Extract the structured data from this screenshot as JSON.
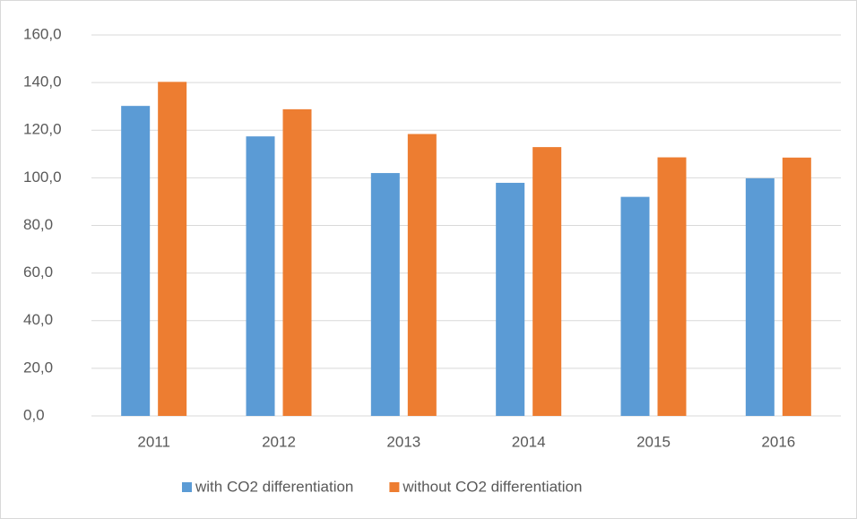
{
  "chart_data": {
    "type": "bar",
    "categories": [
      "2011",
      "2012",
      "2013",
      "2014",
      "2015",
      "2016"
    ],
    "series": [
      {
        "name": "with CO2 differentiation",
        "color": "#5b9bd5",
        "values": [
          130.2,
          117.4,
          102.0,
          97.9,
          92.0,
          99.8
        ]
      },
      {
        "name": "without CO2 differentiation",
        "color": "#ed7d31",
        "values": [
          140.3,
          128.8,
          118.4,
          112.9,
          108.6,
          108.5
        ]
      }
    ],
    "ylim": [
      0,
      160
    ],
    "yticks": [
      {
        "value": 0,
        "label": "0,0"
      },
      {
        "value": 20,
        "label": "20,0"
      },
      {
        "value": 40,
        "label": "40,0"
      },
      {
        "value": 60,
        "label": "60,0"
      },
      {
        "value": 80,
        "label": "80,0"
      },
      {
        "value": 100,
        "label": "100,0"
      },
      {
        "value": 120,
        "label": "120,0"
      },
      {
        "value": 140,
        "label": "140,0"
      },
      {
        "value": 160,
        "label": "160,0"
      }
    ],
    "grid": true,
    "legend": "bottom"
  }
}
